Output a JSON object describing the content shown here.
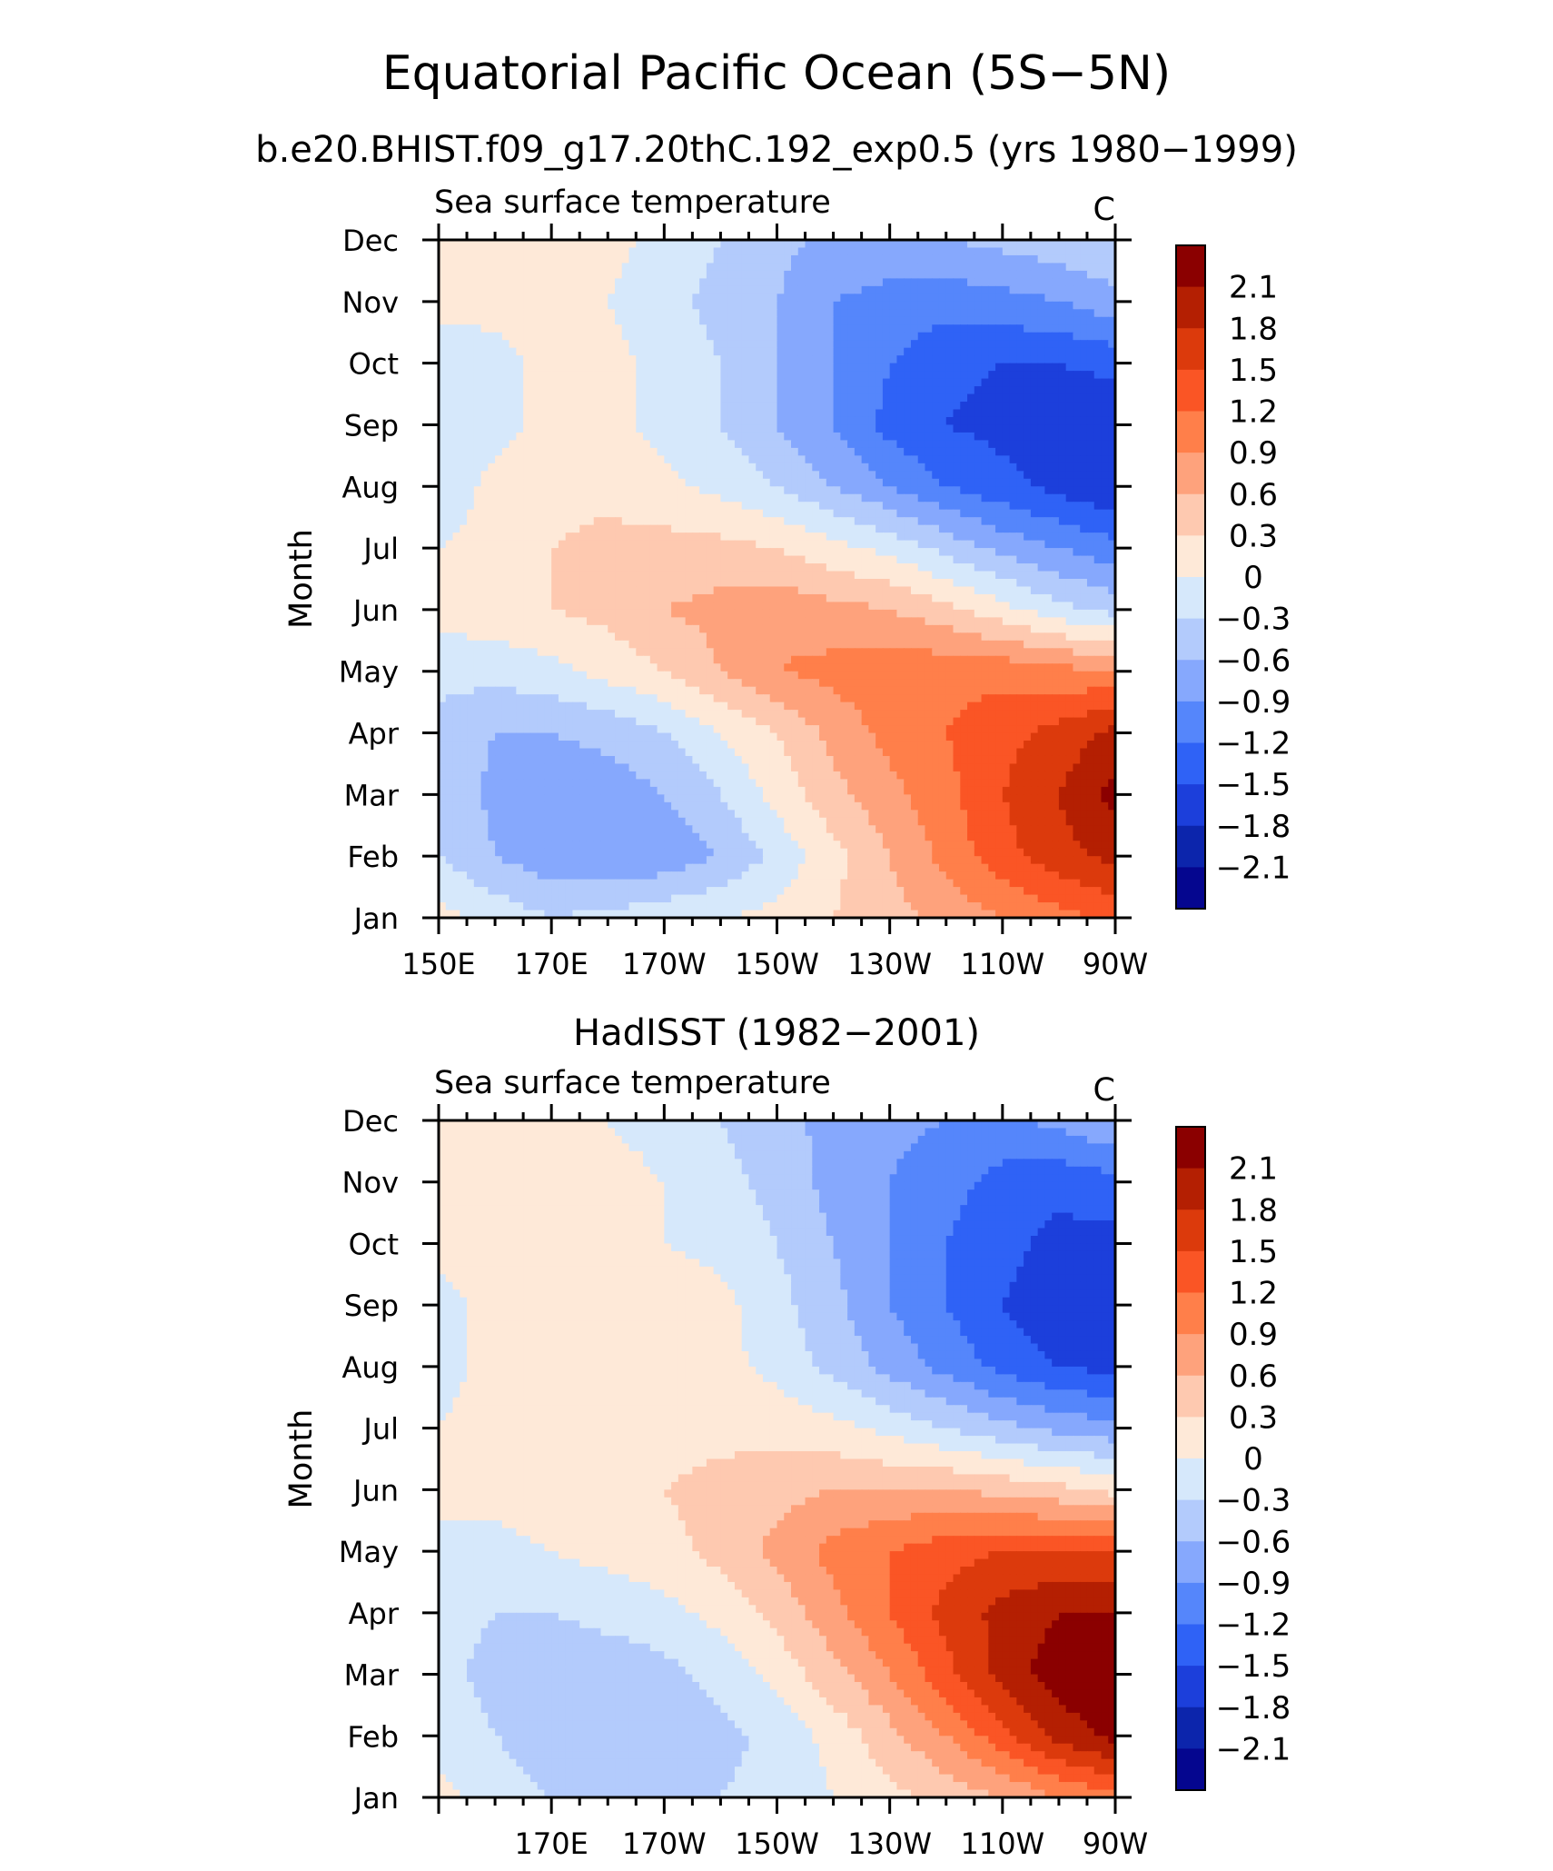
{
  "figure": {
    "title": "Equatorial Pacific Ocean (5S−5N)",
    "subtitle": "b.e20.BHIST.f09_g17.20thC.192_exp0.5 (yrs 1980−1999)"
  },
  "colorbar": {
    "labels": [
      "2.1",
      "1.8",
      "1.5",
      "1.2",
      "0.9",
      "0.6",
      "0.3",
      "0",
      "−0.3",
      "−0.6",
      "−0.9",
      "−1.2",
      "−1.5",
      "−1.8",
      "−2.1"
    ],
    "levels": [
      2.1,
      1.8,
      1.5,
      1.2,
      0.9,
      0.6,
      0.3,
      0,
      -0.3,
      -0.6,
      -0.9,
      -1.2,
      -1.5,
      -1.8,
      -2.1
    ],
    "colors": [
      "#8b0000",
      "#b41f02",
      "#dc3a0c",
      "#fa5525",
      "#ff7f4a",
      "#fea27c",
      "#fec9b0",
      "#fee9d8",
      "#d6e8fb",
      "#b3cbfc",
      "#86a8fd",
      "#5586fb",
      "#2f62f6",
      "#1c3fdb",
      "#0c25ac",
      "#05068f"
    ]
  },
  "chart_data": [
    {
      "type": "heatmap",
      "title": "",
      "left_string": "Sea surface temperature",
      "right_string": "C",
      "xlabel": "",
      "ylabel": "Month",
      "x_ticks": [
        "150E",
        "170E",
        "170W",
        "150W",
        "130W",
        "110W",
        "90W"
      ],
      "y_ticks": [
        "Jan",
        "Feb",
        "Mar",
        "Apr",
        "May",
        "Jun",
        "Jul",
        "Aug",
        "Sep",
        "Oct",
        "Nov",
        "Dec"
      ],
      "xlim": [
        150,
        270
      ],
      "ylim": [
        1,
        12
      ],
      "lon": [
        150,
        160,
        170,
        180,
        190,
        200,
        210,
        220,
        230,
        240,
        250,
        260,
        270
      ],
      "values": [
        [
          0.1,
          -0.1,
          -0.3,
          -0.2,
          -0.1,
          0.0,
          0.1,
          0.3,
          0.5,
          0.7,
          0.9,
          1.1,
          1.3
        ],
        [
          -0.3,
          -0.6,
          -0.8,
          -0.9,
          -0.8,
          -0.6,
          -0.2,
          0.2,
          0.6,
          1.0,
          1.4,
          1.7,
          1.9
        ],
        [
          -0.3,
          -0.7,
          -0.8,
          -0.8,
          -0.6,
          -0.3,
          0.1,
          0.5,
          0.8,
          1.1,
          1.5,
          1.8,
          2.2
        ],
        [
          -0.4,
          -0.6,
          -0.6,
          -0.5,
          -0.3,
          0.0,
          0.3,
          0.7,
          1.0,
          1.2,
          1.4,
          1.6,
          1.9
        ],
        [
          -0.2,
          -0.2,
          -0.1,
          0.1,
          0.3,
          0.6,
          0.9,
          1.0,
          1.1,
          1.1,
          1.1,
          1.0,
          0.9
        ],
        [
          0.1,
          0.2,
          0.3,
          0.4,
          0.6,
          0.7,
          0.8,
          0.7,
          0.6,
          0.4,
          0.1,
          -0.2,
          -0.4
        ],
        [
          0.0,
          0.1,
          0.3,
          0.4,
          0.4,
          0.4,
          0.3,
          0.1,
          -0.1,
          -0.4,
          -0.7,
          -0.9,
          -1.1
        ],
        [
          -0.2,
          0.1,
          0.2,
          0.2,
          0.1,
          -0.1,
          -0.3,
          -0.6,
          -0.9,
          -1.2,
          -1.4,
          -1.6,
          -1.8
        ],
        [
          -0.3,
          -0.1,
          0.1,
          0.1,
          -0.1,
          -0.3,
          -0.6,
          -0.9,
          -1.3,
          -1.5,
          -1.6,
          -1.7,
          -1.8
        ],
        [
          -0.2,
          -0.1,
          0.1,
          0.1,
          -0.1,
          -0.3,
          -0.6,
          -0.9,
          -1.2,
          -1.4,
          -1.5,
          -1.5,
          -1.4
        ],
        [
          0.1,
          0.1,
          0.1,
          0.0,
          -0.2,
          -0.4,
          -0.6,
          -0.9,
          -1.0,
          -1.1,
          -1.0,
          -0.9,
          -0.7
        ],
        [
          0.3,
          0.3,
          0.2,
          0.1,
          -0.1,
          -0.3,
          -0.5,
          -0.7,
          -0.7,
          -0.6,
          -0.5,
          -0.4,
          -0.3
        ]
      ]
    },
    {
      "type": "heatmap",
      "title": "HadISST (1982−2001)",
      "left_string": "Sea surface temperature",
      "right_string": "C",
      "xlabel": "",
      "ylabel": "Month",
      "x_ticks": [
        "170E",
        "170W",
        "150W",
        "130W",
        "110W",
        "90W"
      ],
      "y_ticks": [
        "Jan",
        "Feb",
        "Mar",
        "Apr",
        "May",
        "Jun",
        "Jul",
        "Aug",
        "Sep",
        "Oct",
        "Nov",
        "Dec"
      ],
      "xlim": [
        150,
        270
      ],
      "ylim": [
        1,
        12
      ],
      "lon": [
        150,
        160,
        170,
        180,
        190,
        200,
        210,
        220,
        230,
        240,
        250,
        260,
        270
      ],
      "values": [
        [
          0.1,
          -0.1,
          -0.3,
          -0.4,
          -0.4,
          -0.3,
          -0.2,
          0.0,
          0.2,
          0.4,
          0.6,
          0.9,
          1.1
        ],
        [
          -0.1,
          -0.3,
          -0.5,
          -0.5,
          -0.5,
          -0.4,
          -0.2,
          0.1,
          0.5,
          0.9,
          1.4,
          1.9,
          2.2
        ],
        [
          -0.2,
          -0.4,
          -0.5,
          -0.5,
          -0.4,
          -0.2,
          0.1,
          0.5,
          0.9,
          1.4,
          1.9,
          2.3,
          2.4
        ],
        [
          -0.2,
          -0.3,
          -0.3,
          -0.2,
          -0.1,
          0.1,
          0.4,
          0.8,
          1.2,
          1.6,
          1.9,
          2.1,
          2.1
        ],
        [
          -0.1,
          -0.1,
          0.0,
          0.1,
          0.2,
          0.4,
          0.7,
          1.0,
          1.2,
          1.4,
          1.5,
          1.5,
          1.5
        ],
        [
          0.1,
          0.1,
          0.2,
          0.2,
          0.3,
          0.4,
          0.5,
          0.6,
          0.6,
          0.6,
          0.5,
          0.4,
          0.2
        ],
        [
          0.0,
          0.1,
          0.1,
          0.2,
          0.2,
          0.2,
          0.2,
          0.1,
          -0.1,
          -0.3,
          -0.5,
          -0.7,
          -0.8
        ],
        [
          -0.1,
          0.1,
          0.1,
          0.2,
          0.2,
          0.1,
          -0.1,
          -0.4,
          -0.7,
          -1.0,
          -1.3,
          -1.5,
          -1.6
        ],
        [
          -0.1,
          0.1,
          0.1,
          0.3,
          0.2,
          0.1,
          -0.2,
          -0.5,
          -0.9,
          -1.2,
          -1.5,
          -1.7,
          -1.8
        ],
        [
          0.1,
          0.1,
          0.1,
          0.1,
          0.0,
          -0.1,
          -0.3,
          -0.6,
          -0.9,
          -1.2,
          -1.4,
          -1.6,
          -1.6
        ],
        [
          0.1,
          0.1,
          0.1,
          0.1,
          0.0,
          -0.2,
          -0.4,
          -0.7,
          -0.9,
          -1.1,
          -1.3,
          -1.4,
          -1.3
        ],
        [
          0.1,
          0.1,
          0.1,
          0.0,
          -0.1,
          -0.3,
          -0.5,
          -0.7,
          -0.8,
          -0.9,
          -1.0,
          -0.8,
          -0.6
        ]
      ]
    }
  ]
}
